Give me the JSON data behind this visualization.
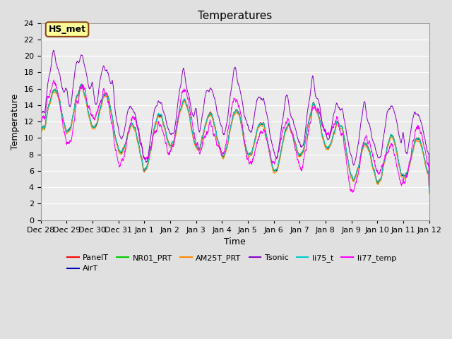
{
  "title": "Temperatures",
  "xlabel": "Time",
  "ylabel": "Temperature",
  "ylim": [
    0,
    24
  ],
  "yticks": [
    0,
    2,
    4,
    6,
    8,
    10,
    12,
    14,
    16,
    18,
    20,
    22,
    24
  ],
  "xtick_labels": [
    "Dec 28",
    "Dec 29",
    "Dec 30",
    "Dec 31",
    "Jan 1",
    "Jan 2",
    "Jan 3",
    "Jan 4",
    "Jan 5",
    "Jan 6",
    "Jan 7",
    "Jan 8",
    "Jan 9",
    "Jan 10",
    "Jan 11",
    "Jan 12"
  ],
  "series_names": [
    "PanelT",
    "AirT",
    "NR01_PRT",
    "AM25T_PRT",
    "Tsonic",
    "li75_t",
    "li77_temp"
  ],
  "series_colors": [
    "#ff0000",
    "#0000bb",
    "#00cc00",
    "#ff8800",
    "#8800cc",
    "#00cccc",
    "#ff00ff"
  ],
  "line_width": 0.7,
  "background_color": "#e0e0e0",
  "plot_bg_color": "#ebebeb",
  "grid_color": "#ffffff",
  "hs_met_label": "HS_met",
  "hs_met_bg": "#ffff99",
  "hs_met_border": "#8B4513",
  "title_fontsize": 11,
  "label_fontsize": 9,
  "tick_fontsize": 8,
  "legend_fontsize": 8,
  "num_points": 2880
}
